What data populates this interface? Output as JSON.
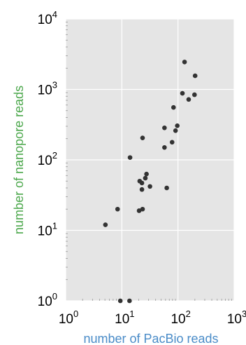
{
  "chart_data": {
    "type": "scatter",
    "xlabel": "number of PacBio reads",
    "ylabel": "number of nanopore reads",
    "x_scale": "log",
    "y_scale": "log",
    "xlim": [
      1,
      1000
    ],
    "ylim": [
      1,
      10000
    ],
    "x_ticks": [
      {
        "base": "10",
        "exp": "0"
      },
      {
        "base": "10",
        "exp": "1"
      },
      {
        "base": "10",
        "exp": "2"
      },
      {
        "base": "10",
        "exp": "3"
      }
    ],
    "y_ticks": [
      {
        "base": "10",
        "exp": "0"
      },
      {
        "base": "10",
        "exp": "1"
      },
      {
        "base": "10",
        "exp": "2"
      },
      {
        "base": "10",
        "exp": "3"
      },
      {
        "base": "10",
        "exp": "4"
      }
    ],
    "grid": true,
    "background": "#e5e5e5",
    "point_color": "#333333",
    "ylabel_color": "#4da84d",
    "xlabel_color": "#4a8cc8",
    "points": [
      {
        "x": 9.4,
        "y": 1
      },
      {
        "x": 13.7,
        "y": 1
      },
      {
        "x": 5.1,
        "y": 12
      },
      {
        "x": 8.4,
        "y": 20
      },
      {
        "x": 14.0,
        "y": 108
      },
      {
        "x": 20.3,
        "y": 19
      },
      {
        "x": 23.4,
        "y": 20
      },
      {
        "x": 20.8,
        "y": 50
      },
      {
        "x": 22.8,
        "y": 47
      },
      {
        "x": 22.8,
        "y": 38
      },
      {
        "x": 26.2,
        "y": 55
      },
      {
        "x": 27.5,
        "y": 63
      },
      {
        "x": 31.7,
        "y": 42
      },
      {
        "x": 23.4,
        "y": 205
      },
      {
        "x": 57.5,
        "y": 285
      },
      {
        "x": 57.5,
        "y": 150
      },
      {
        "x": 63.1,
        "y": 40
      },
      {
        "x": 78.6,
        "y": 178
      },
      {
        "x": 83.3,
        "y": 555
      },
      {
        "x": 90.5,
        "y": 260
      },
      {
        "x": 97.2,
        "y": 305
      },
      {
        "x": 120,
        "y": 880
      },
      {
        "x": 131,
        "y": 2450
      },
      {
        "x": 155,
        "y": 720
      },
      {
        "x": 197,
        "y": 840
      },
      {
        "x": 202,
        "y": 1560
      }
    ]
  }
}
